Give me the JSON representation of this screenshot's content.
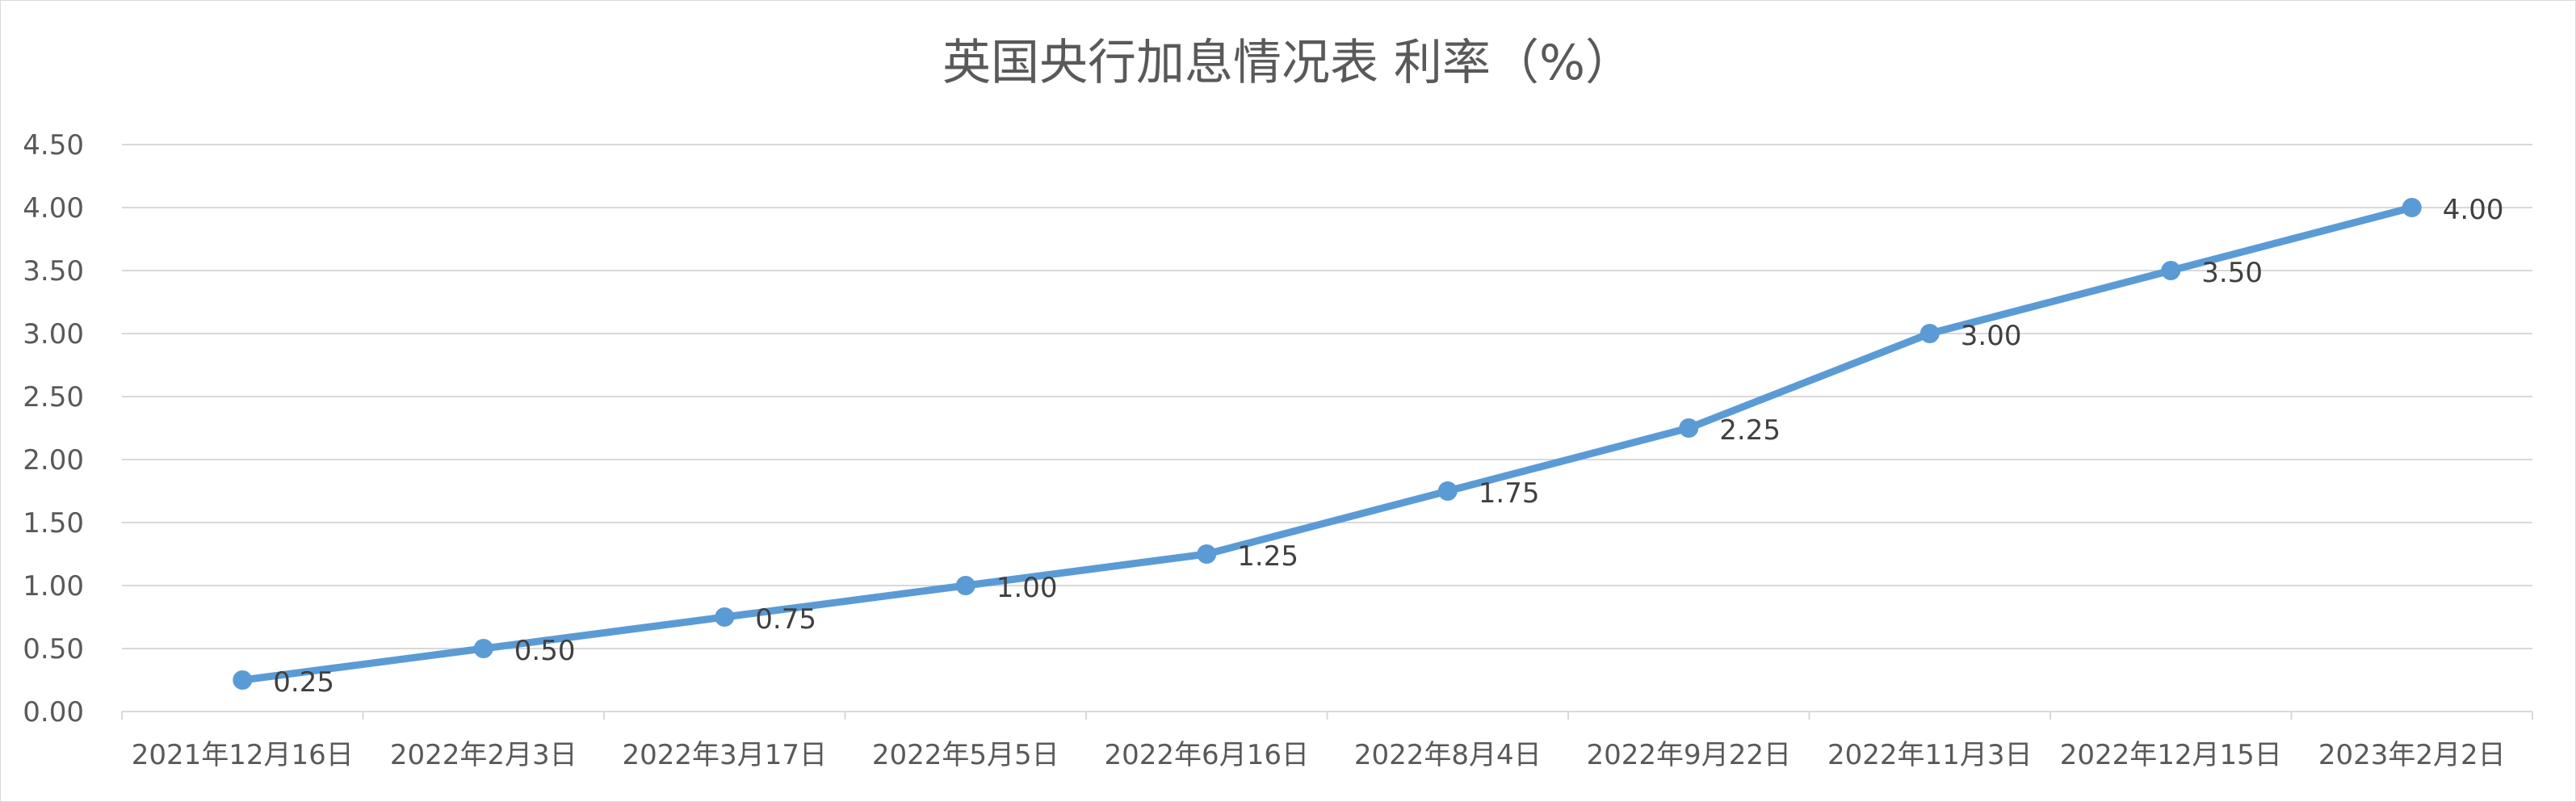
{
  "chart_data": {
    "type": "line",
    "title": "英国央行加息情况表 利率（%）",
    "xlabel": "",
    "ylabel": "",
    "categories": [
      "2021年12月16日",
      "2022年2月3日",
      "2022年3月17日",
      "2022年5月5日",
      "2022年6月16日",
      "2022年8月4日",
      "2022年9月22日",
      "2022年11月3日",
      "2022年12月15日",
      "2023年2月2日"
    ],
    "series": [
      {
        "values": [
          0.25,
          0.5,
          0.75,
          1.0,
          1.25,
          1.75,
          2.25,
          3.0,
          3.5,
          4.0
        ],
        "color": "#5b9bd5"
      }
    ],
    "data_labels": [
      "0.25",
      "0.50",
      "0.75",
      "1.00",
      "1.25",
      "1.75",
      "2.25",
      "3.00",
      "3.50",
      "4.00"
    ],
    "y_ticks": [
      "0.00",
      "0.50",
      "1.00",
      "1.50",
      "2.00",
      "2.50",
      "3.00",
      "3.50",
      "4.00",
      "4.50"
    ],
    "ylim": [
      0,
      4.5
    ],
    "grid": true,
    "legend": "none",
    "colors": {
      "line": "#5b9bd5",
      "grid": "#d9d9d9",
      "axis_text": "#595959"
    }
  }
}
